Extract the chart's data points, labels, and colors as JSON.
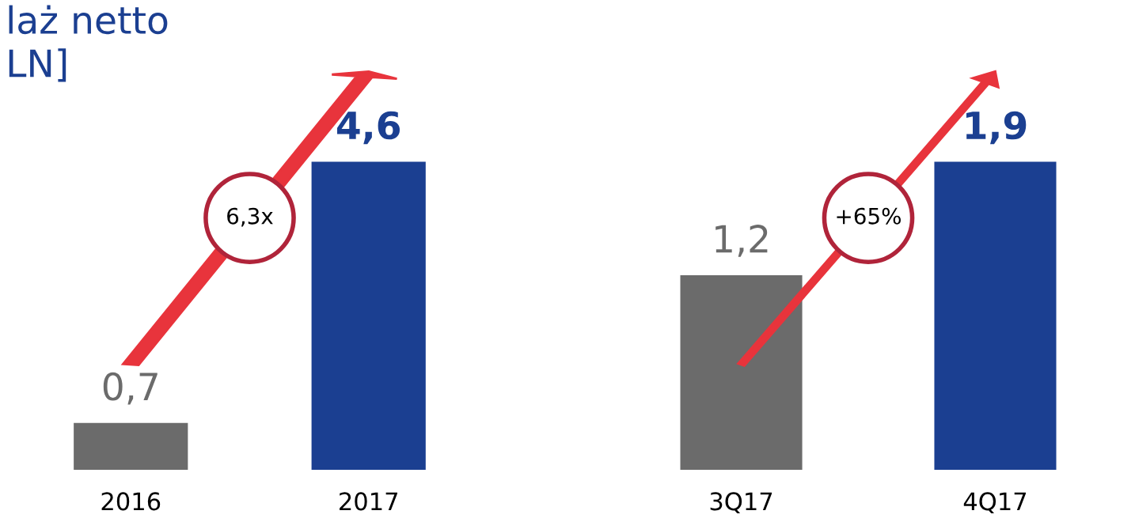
{
  "chart_data": [
    {
      "type": "bar",
      "title": "laż netto\nLN]",
      "categories": [
        "2016",
        "2017"
      ],
      "values": [
        0.7,
        4.6
      ],
      "colors": [
        "#6b6b6b",
        "#1b3f91"
      ],
      "value_labels": [
        "0,7",
        "4,6"
      ],
      "annotations": [
        "6,3x"
      ],
      "legend": false,
      "grid": false
    },
    {
      "type": "bar",
      "categories": [
        "3Q17",
        "4Q17"
      ],
      "values": [
        1.2,
        1.9
      ],
      "colors": [
        "#6b6b6b",
        "#1b3f91"
      ],
      "value_labels": [
        "1,2",
        "1,9"
      ],
      "annotations": [
        "+65%"
      ],
      "legend": false,
      "grid": false
    }
  ]
}
